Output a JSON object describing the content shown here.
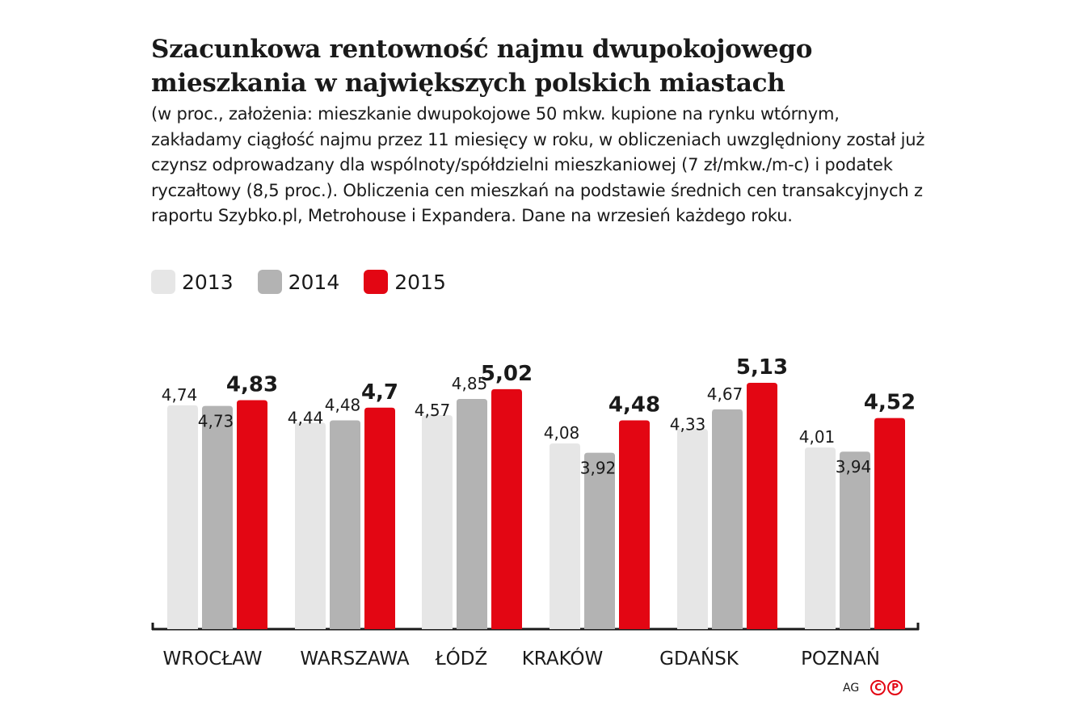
{
  "title": "Szacunkowa rentowność najmu dwupokojowego mieszkania w największych polskich miastach",
  "subtitle": "(w proc., założenia: mieszkanie dwupokojowe 50 mkw. kupione na rynku wtórnym, zakładamy ciągłość najmu przez 11 miesięcy w roku, w obliczeniach uwzględniony został już czynsz odprowadzany dla wspólnoty/spółdzielni mieszkaniowej (7 zł/mkw./m-c) i podatek ryczałtowy (8,5 proc.). Obliczenia cen mieszkań na podstawie średnich cen transakcyjnych z raportu Szybko.pl, Metrohouse i Expandera. Dane na wrzesień każdego roku.",
  "legend": [
    {
      "label": "2013",
      "color": "#e6e6e6"
    },
    {
      "label": "2014",
      "color": "#b3b3b3"
    },
    {
      "label": "2015",
      "color": "#e30613"
    }
  ],
  "chart_data": {
    "type": "bar",
    "categories": [
      "WROCŁAW",
      "WARSZAWA",
      "ŁÓDŹ",
      "KRAKÓW",
      "GDAŃSK",
      "POZNAŃ"
    ],
    "series": [
      {
        "name": "2013",
        "color": "#e6e6e6",
        "values": [
          4.74,
          4.44,
          4.57,
          4.08,
          4.33,
          4.01
        ],
        "labels": [
          "4,74",
          "4,44",
          "4,57",
          "4,08",
          "4,33",
          "4,01"
        ]
      },
      {
        "name": "2014",
        "color": "#b3b3b3",
        "values": [
          4.73,
          4.48,
          4.85,
          3.92,
          4.67,
          3.94
        ],
        "labels": [
          "4,73",
          "4,48",
          "4,85",
          "3,92",
          "4,67",
          "3,94"
        ]
      },
      {
        "name": "2015",
        "color": "#e30613",
        "values": [
          4.83,
          4.7,
          5.02,
          4.48,
          5.13,
          4.52
        ],
        "labels": [
          "4,83",
          "4,7",
          "5,02",
          "4,48",
          "5,13",
          "4,52"
        ]
      }
    ],
    "xlabel": "",
    "ylabel": "",
    "grid": false,
    "legend_position": "top-left"
  },
  "credit": {
    "author": "AG",
    "logo_letters": [
      "C",
      "P"
    ]
  }
}
